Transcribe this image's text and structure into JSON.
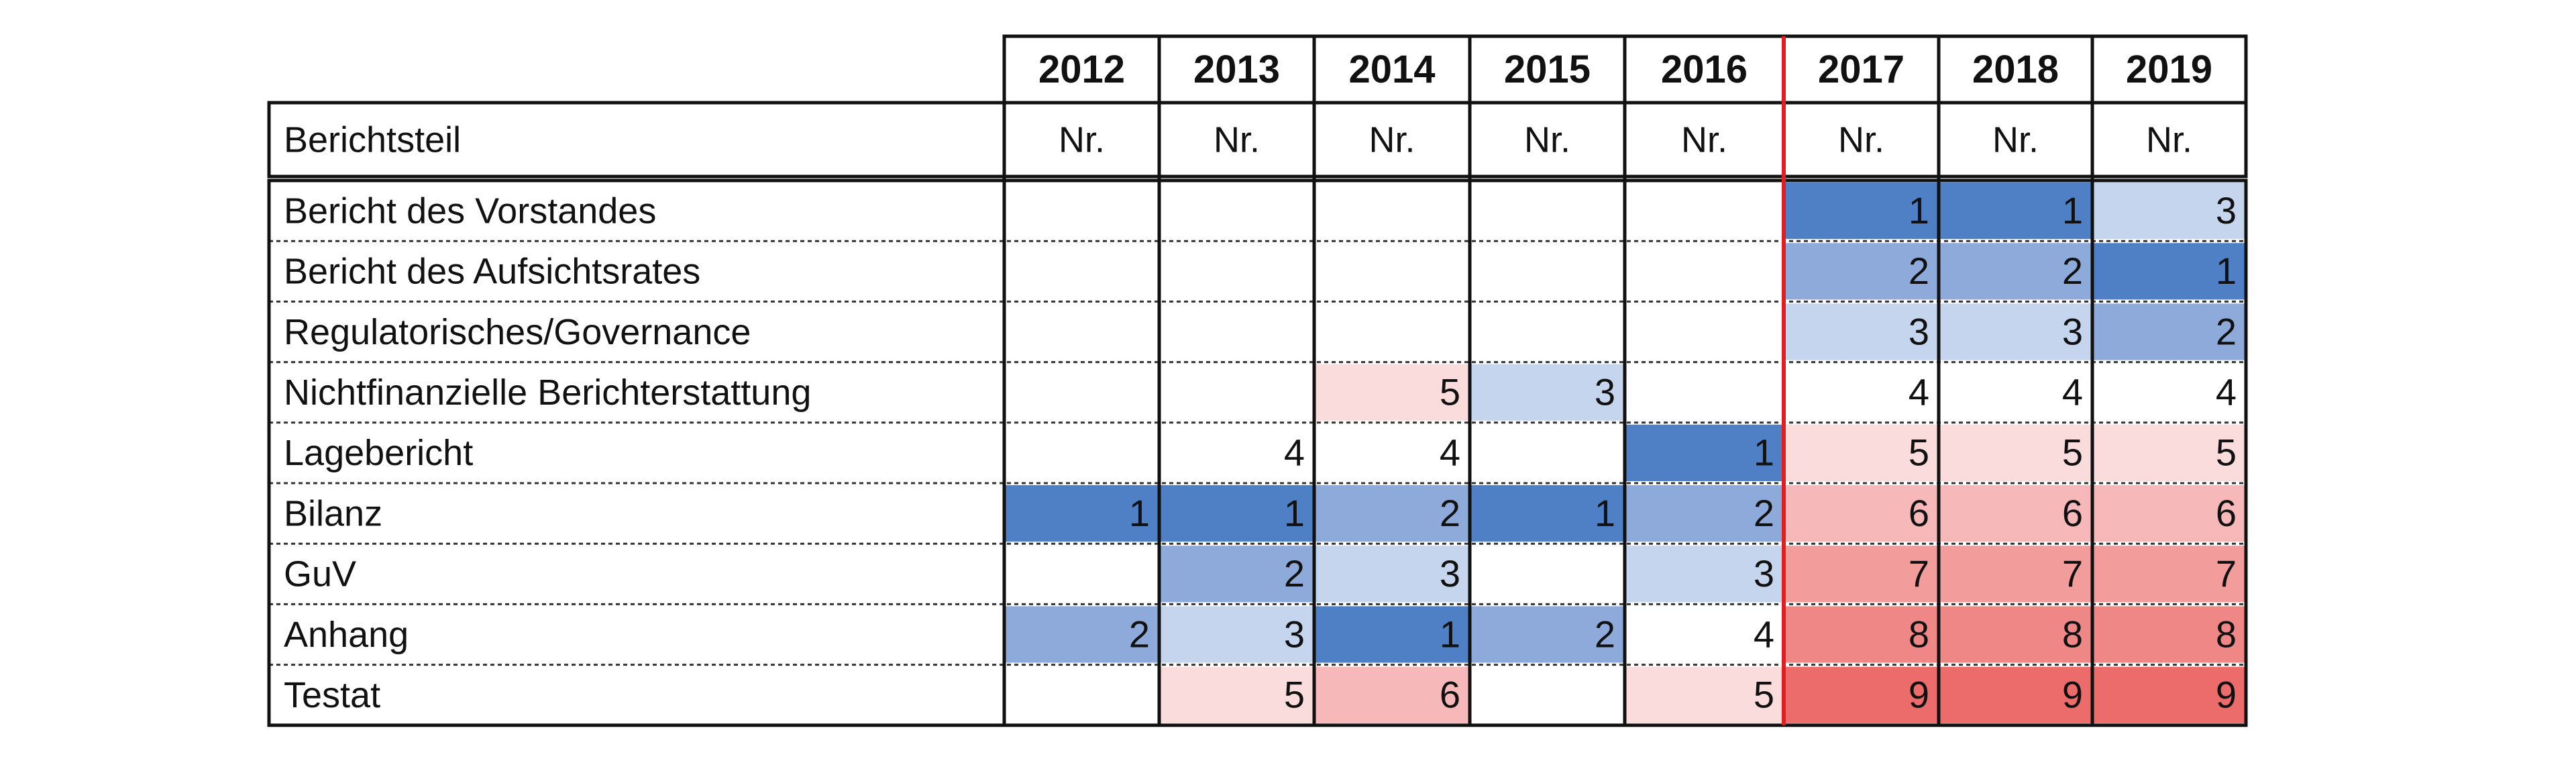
{
  "table": {
    "years": [
      "2012",
      "2013",
      "2014",
      "2015",
      "2016",
      "2017",
      "2018",
      "2019"
    ],
    "label_header": "Berichtsteil",
    "unit_header": [
      "Nr.",
      "Nr.",
      "Nr.",
      "Nr.",
      "Nr.",
      "Nr.",
      "Nr.",
      "Nr."
    ],
    "rows": [
      {
        "label": "Bericht des Vorstandes",
        "values": [
          null,
          null,
          null,
          null,
          null,
          1,
          1,
          3
        ],
        "colors": [
          null,
          null,
          null,
          null,
          null,
          "#4f7fc4",
          "#4f7fc4",
          "#c5d5ee"
        ]
      },
      {
        "label": "Bericht des Aufsichtsrates",
        "values": [
          null,
          null,
          null,
          null,
          null,
          2,
          2,
          1
        ],
        "colors": [
          null,
          null,
          null,
          null,
          null,
          "#8eaadb",
          "#8eaadb",
          "#4f7fc4"
        ]
      },
      {
        "label": "Regulatorisches/Governance",
        "values": [
          null,
          null,
          null,
          null,
          null,
          3,
          3,
          2
        ],
        "colors": [
          null,
          null,
          null,
          null,
          null,
          "#c5d5ee",
          "#c5d5ee",
          "#8eaadb"
        ]
      },
      {
        "label": "Nichtfinanzielle Berichterstattung",
        "values": [
          null,
          null,
          5,
          3,
          null,
          4,
          4,
          4
        ],
        "colors": [
          null,
          null,
          "#fadcdc",
          "#c5d5ee",
          null,
          null,
          null,
          null
        ]
      },
      {
        "label": "Lagebericht",
        "values": [
          null,
          4,
          4,
          null,
          1,
          5,
          5,
          5
        ],
        "colors": [
          null,
          null,
          null,
          null,
          "#4f7fc4",
          "#fadcdc",
          "#fadcdc",
          "#fadcdc"
        ]
      },
      {
        "label": "Bilanz",
        "values": [
          1,
          1,
          2,
          1,
          2,
          6,
          6,
          6
        ],
        "colors": [
          "#4f7fc4",
          "#4f7fc4",
          "#8eaadb",
          "#4f7fc4",
          "#8eaadb",
          "#f6b8b8",
          "#f6b8b8",
          "#f6b8b8"
        ]
      },
      {
        "label": "GuV",
        "values": [
          null,
          2,
          3,
          null,
          3,
          7,
          7,
          7
        ],
        "colors": [
          null,
          "#8eaadb",
          "#c5d5ee",
          null,
          "#c5d5ee",
          "#f29c9c",
          "#f29c9c",
          "#f29c9c"
        ]
      },
      {
        "label": "Anhang",
        "values": [
          2,
          3,
          1,
          2,
          4,
          8,
          8,
          8
        ],
        "colors": [
          "#8eaadb",
          "#c5d5ee",
          "#4f7fc4",
          "#8eaadb",
          null,
          "#ef8787",
          "#ef8787",
          "#ef8787"
        ]
      },
      {
        "label": "Testat",
        "values": [
          null,
          5,
          6,
          null,
          5,
          9,
          9,
          9
        ],
        "colors": [
          null,
          "#fadcdc",
          "#f6b8b8",
          null,
          "#fadcdc",
          "#ec6b6b",
          "#ec6b6b",
          "#ec6b6b"
        ]
      }
    ]
  }
}
